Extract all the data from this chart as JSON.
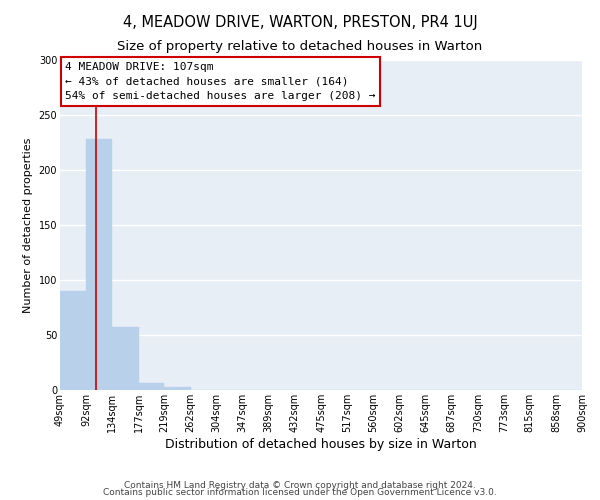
{
  "title": "4, MEADOW DRIVE, WARTON, PRESTON, PR4 1UJ",
  "subtitle": "Size of property relative to detached houses in Warton",
  "xlabel": "Distribution of detached houses by size in Warton",
  "ylabel": "Number of detached properties",
  "bar_edges": [
    49,
    92,
    134,
    177,
    219,
    262,
    304,
    347,
    389,
    432,
    475,
    517,
    560,
    602,
    645,
    687,
    730,
    773,
    815,
    858,
    900
  ],
  "bar_heights": [
    90,
    228,
    57,
    6,
    3,
    0,
    0,
    0,
    0,
    0,
    0,
    0,
    0,
    0,
    0,
    0,
    0,
    0,
    0,
    0
  ],
  "bar_color": "#b8d0ea",
  "bar_edge_color": "#b8d0ea",
  "vline_x": 107,
  "vline_color": "#cc0000",
  "annotation_line1": "4 MEADOW DRIVE: 107sqm",
  "annotation_line2": "← 43% of detached houses are smaller (164)",
  "annotation_line3": "54% of semi-detached houses are larger (208) →",
  "annotation_box_edgecolor": "#cc0000",
  "annotation_box_facecolor": "#ffffff",
  "ylim": [
    0,
    300
  ],
  "yticks": [
    0,
    50,
    100,
    150,
    200,
    250,
    300
  ],
  "tick_labels": [
    "49sqm",
    "92sqm",
    "134sqm",
    "177sqm",
    "219sqm",
    "262sqm",
    "304sqm",
    "347sqm",
    "389sqm",
    "432sqm",
    "475sqm",
    "517sqm",
    "560sqm",
    "602sqm",
    "645sqm",
    "687sqm",
    "730sqm",
    "773sqm",
    "815sqm",
    "858sqm",
    "900sqm"
  ],
  "footer1": "Contains HM Land Registry data © Crown copyright and database right 2024.",
  "footer2": "Contains public sector information licensed under the Open Government Licence v3.0.",
  "bg_color": "#ffffff",
  "plot_bg_color": "#e8eef5",
  "grid_color": "#ffffff",
  "title_fontsize": 10.5,
  "subtitle_fontsize": 9.5,
  "xlabel_fontsize": 9,
  "ylabel_fontsize": 8,
  "tick_fontsize": 7,
  "annotation_fontsize": 8,
  "footer_fontsize": 6.5
}
